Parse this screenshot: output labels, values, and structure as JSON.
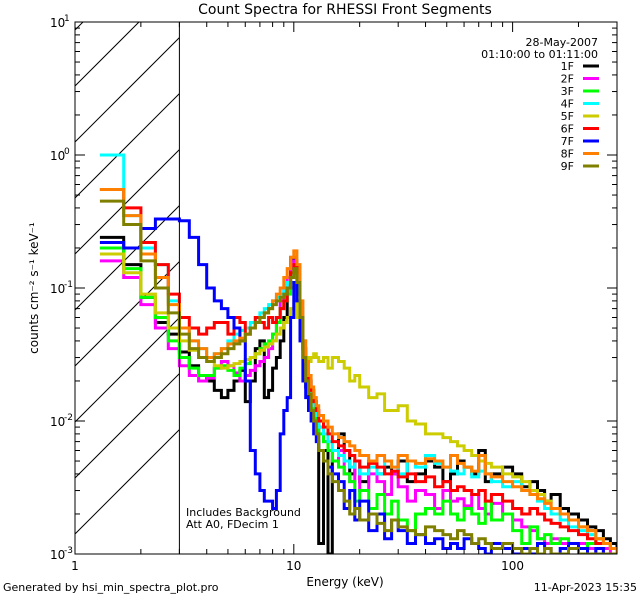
{
  "chart_data": {
    "type": "line",
    "title": "Count Spectra for RHESSI Front Segments",
    "date": "28-May-2007",
    "time_range": "01:10:00 to 01:11:00",
    "xlabel": "Energy (keV)",
    "ylabel": "counts cm⁻² s⁻¹ keV⁻¹",
    "xscale": "log",
    "yscale": "log",
    "xlim": [
      1,
      300
    ],
    "ylim": [
      0.001,
      10
    ],
    "x_ticks": [
      {
        "value": 1,
        "label": "1"
      },
      {
        "value": 10,
        "label": "10"
      },
      {
        "value": 100,
        "label": "100"
      }
    ],
    "y_ticks": [
      {
        "value": 10,
        "base": "10",
        "exp": "1"
      },
      {
        "value": 1,
        "base": "10",
        "exp": "0"
      },
      {
        "value": 0.1,
        "base": "10",
        "exp": "-1"
      },
      {
        "value": 0.01,
        "base": "10",
        "exp": "-2"
      },
      {
        "value": 0.001,
        "base": "10",
        "exp": "-3"
      }
    ],
    "hatched_region_below_keV": 3,
    "annotations": [
      "Includes Background",
      "Att A0, FDecim 1"
    ],
    "legend_position": "top-right",
    "energy_bins": [
      1.3,
      1.67,
      2.0,
      2.33,
      2.67,
      3.0,
      3.33,
      3.67,
      4.0,
      4.33,
      4.67,
      5.0,
      5.33,
      5.67,
      6.0,
      6.33,
      6.67,
      7.0,
      7.33,
      7.67,
      8.0,
      8.33,
      8.67,
      9.0,
      9.33,
      9.67,
      10.0,
      10.33,
      10.67,
      11.0,
      11.33,
      11.67,
      12.0,
      12.33,
      12.67,
      13.0,
      13.67,
      14.33,
      15.0,
      16.0,
      17.0,
      18.0,
      19.0,
      20.0,
      22.0,
      24.0,
      26.0,
      28.0,
      30.0,
      33.0,
      36.0,
      40.0,
      44.0,
      48.0,
      52.0,
      56.0,
      60.0,
      65.0,
      70.0,
      75.0,
      80.0,
      90.0,
      100.0,
      110.0,
      120.0,
      130.0,
      140.0,
      150.0,
      165.0,
      180.0,
      200.0,
      220.0,
      240.0,
      260.0,
      280.0,
      300.0
    ],
    "series": [
      {
        "name": "1F",
        "color": "#000000",
        "values": [
          0.24,
          0.15,
          0.085,
          0.055,
          0.045,
          0.033,
          0.026,
          0.022,
          0.02,
          0.017,
          0.015,
          0.017,
          0.02,
          0.024,
          0.014,
          0.02,
          0.035,
          0.04,
          0.015,
          0.017,
          0.025,
          0.03,
          0.04,
          0.06,
          0.11,
          0.17,
          0.16,
          0.12,
          0.05,
          0.03,
          0.018,
          0.014,
          0.016,
          0.012,
          0.01,
          0.0012,
          0.006,
          0.0008,
          0.005,
          0.008,
          0.006,
          0.004,
          0.005,
          0.0035,
          0.005,
          0.004,
          0.0045,
          0.004,
          0.005,
          0.0035,
          0.004,
          0.005,
          0.0045,
          0.0035,
          0.004,
          0.005,
          0.0045,
          0.004,
          0.006,
          0.0035,
          0.004,
          0.0045,
          0.004,
          0.0032,
          0.0035,
          0.003,
          0.0025,
          0.0028,
          0.0022,
          0.002,
          0.0018,
          0.0016,
          0.0015,
          0.0013,
          0.0012,
          0.0011
        ]
      },
      {
        "name": "2F",
        "color": "#ff00ff",
        "values": [
          0.16,
          0.12,
          0.075,
          0.05,
          0.035,
          0.026,
          0.022,
          0.02,
          0.021,
          0.025,
          0.028,
          0.026,
          0.023,
          0.02,
          0.022,
          0.024,
          0.026,
          0.028,
          0.03,
          0.035,
          0.045,
          0.06,
          0.08,
          0.1,
          0.12,
          0.14,
          0.16,
          0.13,
          0.07,
          0.035,
          0.025,
          0.02,
          0.017,
          0.014,
          0.012,
          0.009,
          0.007,
          0.006,
          0.005,
          0.006,
          0.004,
          0.0035,
          0.005,
          0.003,
          0.004,
          0.0035,
          0.0028,
          0.004,
          0.0032,
          0.0025,
          0.003,
          0.0028,
          0.0022,
          0.003,
          0.0025,
          0.0026,
          0.0023,
          0.0028,
          0.0022,
          0.002,
          0.0024,
          0.002,
          0.0018,
          0.0016,
          0.0015,
          0.0013,
          0.0012,
          0.0013,
          0.0012,
          0.0011,
          0.0012,
          0.0011,
          0.001,
          0.0011,
          0.001,
          0.001
        ]
      },
      {
        "name": "3F",
        "color": "#00ff00",
        "values": [
          0.2,
          0.14,
          0.085,
          0.06,
          0.04,
          0.03,
          0.025,
          0.022,
          0.022,
          0.025,
          0.026,
          0.024,
          0.022,
          0.025,
          0.027,
          0.03,
          0.032,
          0.035,
          0.038,
          0.04,
          0.045,
          0.055,
          0.07,
          0.08,
          0.09,
          0.1,
          0.11,
          0.09,
          0.06,
          0.035,
          0.022,
          0.018,
          0.015,
          0.012,
          0.01,
          0.008,
          0.007,
          0.006,
          0.005,
          0.0045,
          0.004,
          0.0035,
          0.0025,
          0.003,
          0.0022,
          0.0028,
          0.002,
          0.0025,
          0.0018,
          0.0015,
          0.002,
          0.0022,
          0.002,
          0.0025,
          0.002,
          0.0018,
          0.0022,
          0.002,
          0.0017,
          0.0025,
          0.0018,
          0.002,
          0.0015,
          0.0012,
          0.0016,
          0.0013,
          0.0014,
          0.0012,
          0.0013,
          0.0012,
          0.0011,
          0.0012,
          0.0013,
          0.0012,
          0.0011,
          0.001
        ]
      },
      {
        "name": "4F",
        "color": "#00ffff",
        "values": [
          1.0,
          0.35,
          0.2,
          0.15,
          0.08,
          0.05,
          0.04,
          0.035,
          0.03,
          0.032,
          0.035,
          0.04,
          0.045,
          0.048,
          0.05,
          0.055,
          0.06,
          0.065,
          0.07,
          0.075,
          0.08,
          0.085,
          0.09,
          0.1,
          0.11,
          0.12,
          0.13,
          0.1,
          0.07,
          0.04,
          0.025,
          0.02,
          0.016,
          0.013,
          0.011,
          0.009,
          0.008,
          0.007,
          0.006,
          0.0055,
          0.005,
          0.0045,
          0.005,
          0.004,
          0.0045,
          0.004,
          0.005,
          0.0045,
          0.004,
          0.005,
          0.0045,
          0.0055,
          0.0048,
          0.0045,
          0.0042,
          0.004,
          0.0045,
          0.0038,
          0.0042,
          0.004,
          0.0035,
          0.0032,
          0.0035,
          0.003,
          0.0028,
          0.0025,
          0.0022,
          0.002,
          0.0018,
          0.0016,
          0.0015,
          0.0014,
          0.0013,
          0.0012,
          0.0011,
          0.001
        ]
      },
      {
        "name": "5F",
        "color": "#cccc00",
        "values": [
          0.18,
          0.13,
          0.09,
          0.065,
          0.05,
          0.04,
          0.034,
          0.03,
          0.028,
          0.026,
          0.025,
          0.026,
          0.027,
          0.028,
          0.029,
          0.03,
          0.032,
          0.034,
          0.036,
          0.038,
          0.04,
          0.045,
          0.05,
          0.055,
          0.06,
          0.07,
          0.08,
          0.06,
          0.04,
          0.035,
          0.03,
          0.028,
          0.03,
          0.032,
          0.03,
          0.028,
          0.03,
          0.025,
          0.03,
          0.028,
          0.025,
          0.02,
          0.022,
          0.018,
          0.015,
          0.016,
          0.012,
          0.012,
          0.013,
          0.01,
          0.0095,
          0.008,
          0.008,
          0.0075,
          0.007,
          0.0065,
          0.006,
          0.0055,
          0.005,
          0.0048,
          0.0045,
          0.004,
          0.0038,
          0.0035,
          0.003,
          0.0028,
          0.0025,
          0.0022,
          0.002,
          0.0018,
          0.0016,
          0.0015,
          0.0013,
          0.0012,
          0.0011,
          0.001
        ]
      },
      {
        "name": "6F",
        "color": "#ff0000",
        "values": [
          0.55,
          0.4,
          0.22,
          0.15,
          0.09,
          0.06,
          0.05,
          0.045,
          0.05,
          0.055,
          0.055,
          0.045,
          0.06,
          0.055,
          0.045,
          0.05,
          0.06,
          0.055,
          0.05,
          0.06,
          0.055,
          0.06,
          0.07,
          0.08,
          0.1,
          0.13,
          0.15,
          0.13,
          0.06,
          0.035,
          0.025,
          0.02,
          0.017,
          0.014,
          0.012,
          0.01,
          0.009,
          0.008,
          0.007,
          0.0065,
          0.006,
          0.0055,
          0.005,
          0.0045,
          0.0048,
          0.0045,
          0.004,
          0.0042,
          0.0038,
          0.004,
          0.0035,
          0.0038,
          0.0032,
          0.0035,
          0.003,
          0.0032,
          0.003,
          0.0028,
          0.003,
          0.0025,
          0.0028,
          0.0025,
          0.0022,
          0.002,
          0.0022,
          0.002,
          0.0018,
          0.0017,
          0.0016,
          0.0015,
          0.0014,
          0.0013,
          0.0012,
          0.0012,
          0.0011,
          0.001
        ]
      },
      {
        "name": "7F",
        "color": "#0000ff",
        "values": [
          0.22,
          0.2,
          0.28,
          0.33,
          0.33,
          0.32,
          0.24,
          0.15,
          0.1,
          0.08,
          0.07,
          0.06,
          0.05,
          0.04,
          0.02,
          0.006,
          0.004,
          0.003,
          0.0025,
          0.0025,
          0.0022,
          0.003,
          0.008,
          0.012,
          0.015,
          0.06,
          0.11,
          0.08,
          0.04,
          0.02,
          0.015,
          0.012,
          0.01,
          0.008,
          0.007,
          0.006,
          0.005,
          0.0045,
          0.004,
          0.0035,
          0.0022,
          0.003,
          0.0018,
          0.0025,
          0.0015,
          0.002,
          0.0013,
          0.0018,
          0.0015,
          0.0012,
          0.0014,
          0.0012,
          0.0013,
          0.0011,
          0.0012,
          0.0011,
          0.0013,
          0.0012,
          0.0011,
          0.001,
          0.0012,
          0.0011,
          0.001,
          0.0011,
          0.001,
          0.0012,
          0.0011,
          0.001,
          0.0011,
          0.0012,
          0.0011,
          0.001,
          0.0011,
          0.001,
          0.001,
          0.001
        ]
      },
      {
        "name": "8F",
        "color": "#ff8000",
        "values": [
          0.55,
          0.35,
          0.18,
          0.12,
          0.075,
          0.05,
          0.04,
          0.035,
          0.03,
          0.032,
          0.035,
          0.038,
          0.04,
          0.042,
          0.045,
          0.05,
          0.055,
          0.06,
          0.065,
          0.07,
          0.08,
          0.09,
          0.1,
          0.12,
          0.14,
          0.17,
          0.19,
          0.15,
          0.08,
          0.04,
          0.028,
          0.022,
          0.018,
          0.015,
          0.013,
          0.011,
          0.01,
          0.009,
          0.008,
          0.0075,
          0.007,
          0.0065,
          0.006,
          0.0055,
          0.005,
          0.0055,
          0.005,
          0.0045,
          0.0055,
          0.005,
          0.0048,
          0.0052,
          0.005,
          0.0045,
          0.0055,
          0.0048,
          0.0045,
          0.0042,
          0.0055,
          0.004,
          0.0038,
          0.0035,
          0.0032,
          0.003,
          0.0028,
          0.0026,
          0.0024,
          0.0022,
          0.002,
          0.0018,
          0.0016,
          0.0015,
          0.0013,
          0.0012,
          0.0011,
          0.001
        ]
      },
      {
        "name": "9F",
        "color": "#808000",
        "values": [
          0.45,
          0.3,
          0.16,
          0.1,
          0.065,
          0.045,
          0.035,
          0.03,
          0.028,
          0.03,
          0.032,
          0.035,
          0.038,
          0.04,
          0.045,
          0.05,
          0.055,
          0.06,
          0.065,
          0.07,
          0.075,
          0.08,
          0.085,
          0.09,
          0.1,
          0.12,
          0.14,
          0.11,
          0.06,
          0.03,
          0.02,
          0.016,
          0.012,
          0.01,
          0.008,
          0.006,
          0.005,
          0.004,
          0.0035,
          0.003,
          0.0025,
          0.002,
          0.0022,
          0.0018,
          0.002,
          0.0017,
          0.0015,
          0.0018,
          0.0016,
          0.0015,
          0.0014,
          0.0016,
          0.0015,
          0.0014,
          0.0013,
          0.0015,
          0.0014,
          0.0012,
          0.0013,
          0.0012,
          0.0011,
          0.0012,
          0.0011,
          0.001,
          0.0011,
          0.001,
          0.0011,
          0.001,
          0.001,
          0.0011,
          0.001,
          0.001,
          0.001,
          0.001,
          0.001,
          0.001
        ]
      }
    ]
  },
  "footer": {
    "generated_by": "Generated by hsi_min_spectra_plot.pro",
    "timestamp": "11-Apr-2023 15:35"
  }
}
